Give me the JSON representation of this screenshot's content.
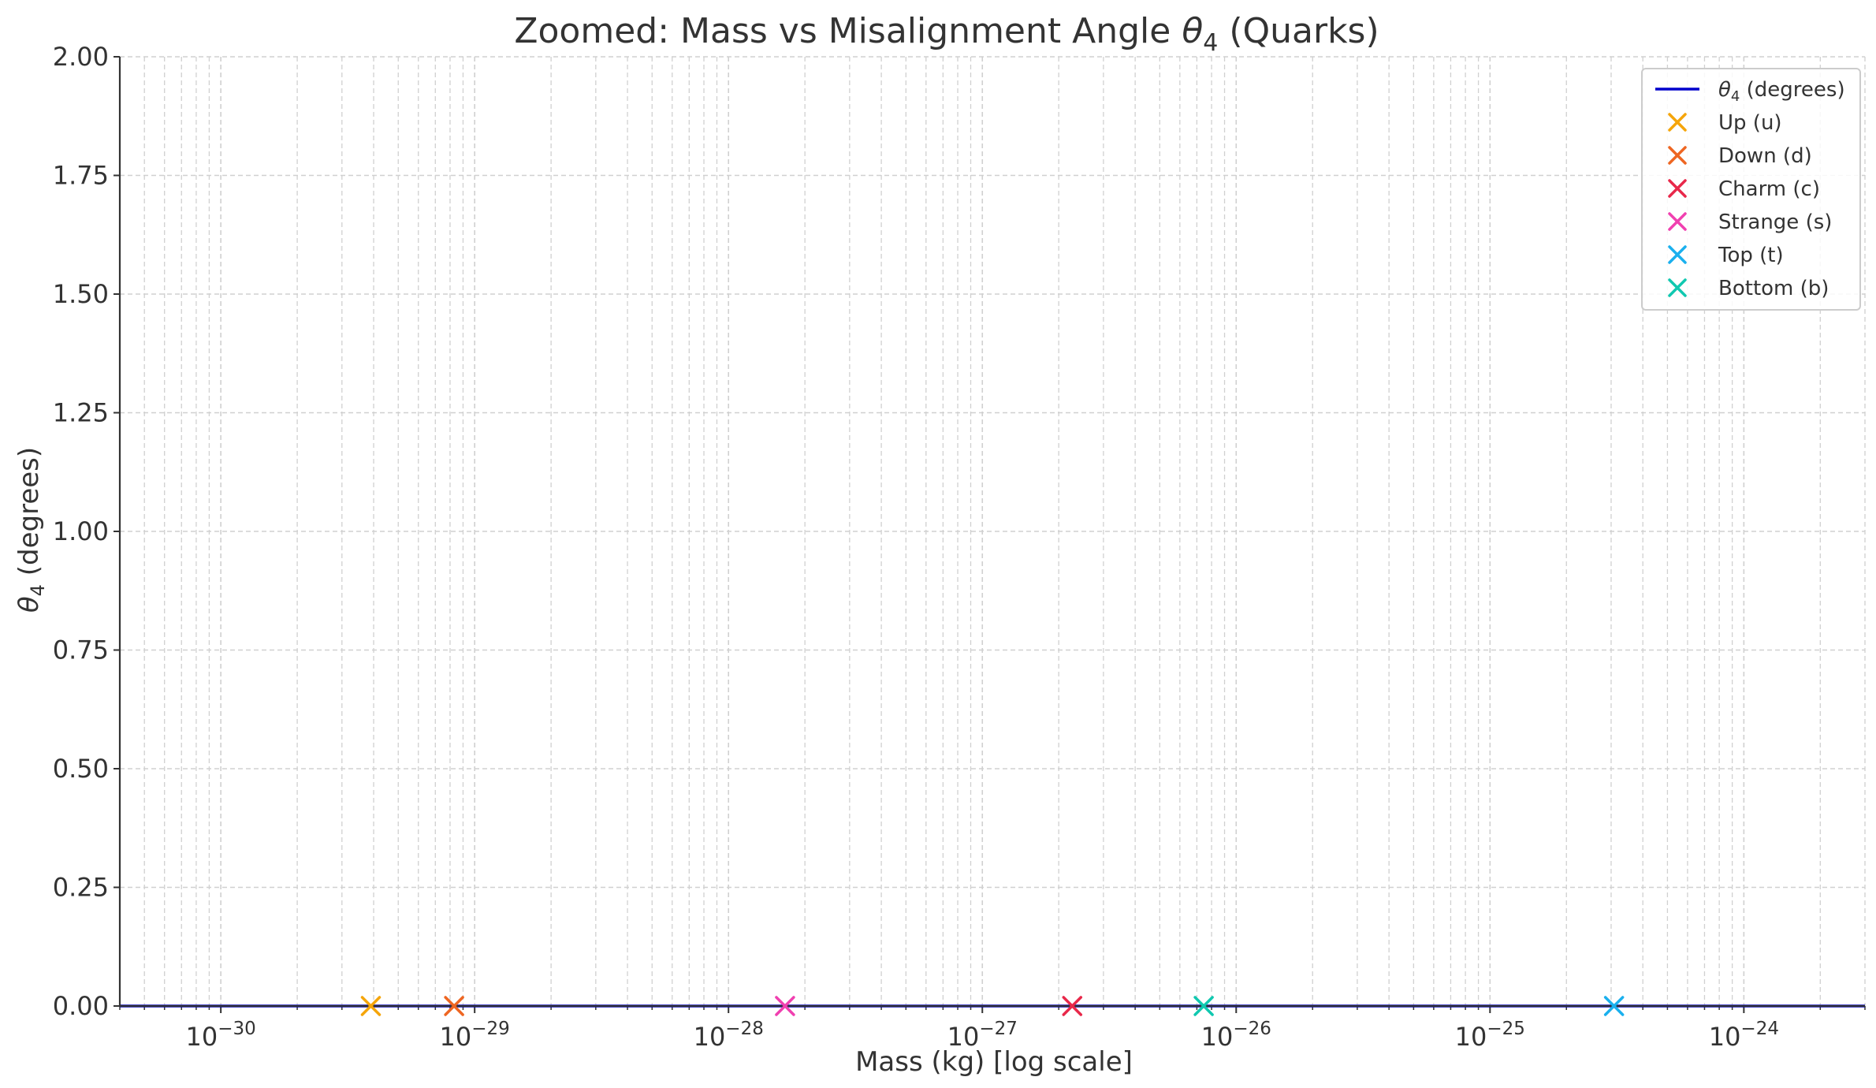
{
  "chart_data": {
    "type": "scatter",
    "title_main": "Zoomed: Mass vs Misalignment Angle ",
    "title_symbol": "θ",
    "title_subscript": "4",
    "title_tail": " (Quarks)",
    "xlabel": "Mass (kg) [log scale]",
    "ylabel_symbol": "θ",
    "ylabel_subscript": "4",
    "ylabel_tail": " (degrees)",
    "x_scale": "log",
    "xlim": [
      4e-31,
      3e-24
    ],
    "ylim": [
      0,
      2
    ],
    "x_ticks": [
      {
        "value": 1e-30,
        "base": "10",
        "exp": "−30"
      },
      {
        "value": 1e-29,
        "base": "10",
        "exp": "−29"
      },
      {
        "value": 1e-28,
        "base": "10",
        "exp": "−28"
      },
      {
        "value": 1e-27,
        "base": "10",
        "exp": "−27"
      },
      {
        "value": 1e-26,
        "base": "10",
        "exp": "−26"
      },
      {
        "value": 1e-25,
        "base": "10",
        "exp": "−25"
      },
      {
        "value": 1e-24,
        "base": "10",
        "exp": "−24"
      }
    ],
    "y_ticks": [
      {
        "value": 0,
        "label": "0.00"
      },
      {
        "value": 0.25,
        "label": "0.25"
      },
      {
        "value": 0.5,
        "label": "0.50"
      },
      {
        "value": 0.75,
        "label": "0.75"
      },
      {
        "value": 1.0,
        "label": "1.00"
      },
      {
        "value": 1.25,
        "label": "1.25"
      },
      {
        "value": 1.5,
        "label": "1.50"
      },
      {
        "value": 1.75,
        "label": "1.75"
      },
      {
        "value": 2.0,
        "label": "2.00"
      }
    ],
    "grid": true,
    "legend_position": "top-right",
    "line": {
      "symbol": "θ",
      "subscript": "4",
      "name_tail": " (degrees)",
      "color": "#0000cc",
      "x": [
        4e-31,
        3e-24
      ],
      "y": [
        0,
        0
      ]
    },
    "series": [
      {
        "name": "Up (u)",
        "color": "#f5a50a",
        "x": 3.9e-30,
        "y": 0
      },
      {
        "name": "Down (d)",
        "color": "#ee6622",
        "x": 8.3e-30,
        "y": 0
      },
      {
        "name": "Charm (c)",
        "color": "#e8284a",
        "x": 2.26e-27,
        "y": 0
      },
      {
        "name": "Strange (s)",
        "color": "#f040b0",
        "x": 1.67e-28,
        "y": 0
      },
      {
        "name": "Top (t)",
        "color": "#1ab0ee",
        "x": 3.08e-25,
        "y": 0
      },
      {
        "name": "Bottom (b)",
        "color": "#10c8b0",
        "x": 7.45e-27,
        "y": 0
      }
    ]
  }
}
